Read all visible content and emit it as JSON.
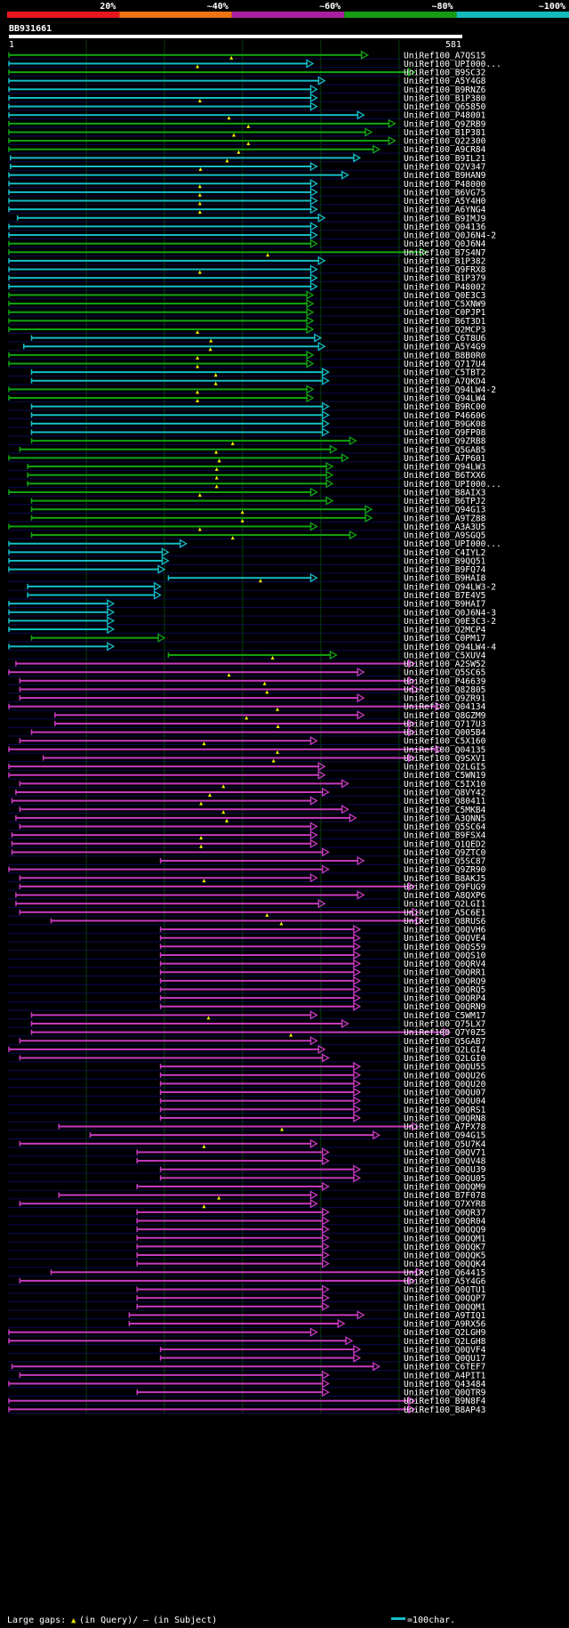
{
  "scale": {
    "ticks": [
      "20%",
      "~40%",
      "~60%",
      "~80%",
      "~100%"
    ],
    "colors": [
      "#e8161e",
      "#ec7412",
      "#a8209f",
      "#169b14",
      "#14b9b9"
    ]
  },
  "query": {
    "id": "BB931661",
    "start": "1",
    "end": "581",
    "length": 581
  },
  "colors": {
    "cyan": "#14bcc6",
    "green": "#11a511",
    "magenta": "#c63ac0",
    "white": "#ffffff",
    "label": "#ffffff",
    "grid": "#0b3a0b",
    "band": "#0a0a55"
  },
  "hits": [
    {
      "id": "UniRef100_A7QS15",
      "s": 1,
      "e": 460,
      "c": "green",
      "gap": true
    },
    {
      "id": "UniRef100_UPI000...",
      "s": 1,
      "e": 390,
      "c": "cyan",
      "gap": true
    },
    {
      "id": "UniRef100_B9SC32",
      "s": 1,
      "e": 520,
      "c": "green",
      "gap": false
    },
    {
      "id": "UniRef100_A5Y4G8",
      "s": 1,
      "e": 405,
      "c": "cyan",
      "gap": false
    },
    {
      "id": "UniRef100_B9RNZ6",
      "s": 1,
      "e": 395,
      "c": "cyan",
      "gap": false
    },
    {
      "id": "UniRef100_B1P380",
      "s": 1,
      "e": 395,
      "c": "cyan",
      "gap": true
    },
    {
      "id": "UniRef100_Q65850",
      "s": 1,
      "e": 395,
      "c": "cyan",
      "gap": false
    },
    {
      "id": "UniRef100_P48001",
      "s": 1,
      "e": 455,
      "c": "cyan",
      "gap": true
    },
    {
      "id": "UniRef100_Q9ZRB9",
      "s": 1,
      "e": 495,
      "c": "green",
      "gap": true
    },
    {
      "id": "UniRef100_B1P381",
      "s": 1,
      "e": 465,
      "c": "green",
      "gap": true
    },
    {
      "id": "UniRef100_Q22300",
      "s": 1,
      "e": 495,
      "c": "green",
      "gap": true
    },
    {
      "id": "UniRef100_A9CR84",
      "s": 1,
      "e": 475,
      "c": "green",
      "gap": true
    },
    {
      "id": "UniRef100_B9IL21",
      "s": 3,
      "e": 450,
      "c": "cyan",
      "gap": true
    },
    {
      "id": "UniRef100_Q2V347",
      "s": 3,
      "e": 395,
      "c": "cyan",
      "gap": true
    },
    {
      "id": "UniRef100_B9HAN9",
      "s": 1,
      "e": 435,
      "c": "cyan",
      "gap": false
    },
    {
      "id": "UniRef100_P48000",
      "s": 1,
      "e": 395,
      "c": "cyan",
      "gap": true
    },
    {
      "id": "UniRef100_B6VG75",
      "s": 1,
      "e": 395,
      "c": "cyan",
      "gap": true
    },
    {
      "id": "UniRef100_A5Y4H0",
      "s": 1,
      "e": 395,
      "c": "cyan",
      "gap": true
    },
    {
      "id": "UniRef100_A6YNG4",
      "s": 1,
      "e": 395,
      "c": "cyan",
      "gap": true
    },
    {
      "id": "UniRef100_B9IMJ9",
      "s": 12,
      "e": 405,
      "c": "cyan",
      "gap": false
    },
    {
      "id": "UniRef100_Q04136",
      "s": 1,
      "e": 395,
      "c": "cyan",
      "gap": false
    },
    {
      "id": "UniRef100_Q0J6N4-2",
      "s": 1,
      "e": 395,
      "c": "cyan",
      "gap": false
    },
    {
      "id": "UniRef100_Q0J6N4",
      "s": 1,
      "e": 395,
      "c": "green",
      "gap": false
    },
    {
      "id": "UniRef100_B7S4N7",
      "s": 1,
      "e": 535,
      "c": "green",
      "gap": true
    },
    {
      "id": "UniRef100_B1P382",
      "s": 1,
      "e": 405,
      "c": "cyan",
      "gap": false
    },
    {
      "id": "UniRef100_Q9FRX8",
      "s": 1,
      "e": 395,
      "c": "cyan",
      "gap": true
    },
    {
      "id": "UniRef100_B1P379",
      "s": 1,
      "e": 395,
      "c": "cyan",
      "gap": false
    },
    {
      "id": "UniRef100_P48002",
      "s": 1,
      "e": 395,
      "c": "cyan",
      "gap": false
    },
    {
      "id": "UniRef100_Q0E3C3",
      "s": 1,
      "e": 390,
      "c": "green",
      "gap": false
    },
    {
      "id": "UniRef100_C5XNW9",
      "s": 1,
      "e": 390,
      "c": "green",
      "gap": false
    },
    {
      "id": "UniRef100_C0PJP1",
      "s": 1,
      "e": 390,
      "c": "green",
      "gap": false
    },
    {
      "id": "UniRef100_B6T3D1",
      "s": 1,
      "e": 390,
      "c": "green",
      "gap": false
    },
    {
      "id": "UniRef100_Q2MCP3",
      "s": 1,
      "e": 390,
      "c": "green",
      "gap": true
    },
    {
      "id": "UniRef100_C6T8U6",
      "s": 30,
      "e": 400,
      "c": "cyan",
      "gap": true
    },
    {
      "id": "UniRef100_A5Y4G9",
      "s": 20,
      "e": 405,
      "c": "cyan",
      "gap": true
    },
    {
      "id": "UniRef100_B8B0R0",
      "s": 1,
      "e": 390,
      "c": "green",
      "gap": true
    },
    {
      "id": "UniRef100_Q717U4",
      "s": 1,
      "e": 390,
      "c": "green",
      "gap": true
    },
    {
      "id": "UniRef100_C5TBT2",
      "s": 30,
      "e": 410,
      "c": "cyan",
      "gap": true
    },
    {
      "id": "UniRef100_A7QKD4",
      "s": 30,
      "e": 410,
      "c": "cyan",
      "gap": true
    },
    {
      "id": "UniRef100_Q94LW4-2",
      "s": 1,
      "e": 390,
      "c": "green",
      "gap": true
    },
    {
      "id": "UniRef100_Q94LW4",
      "s": 1,
      "e": 390,
      "c": "green",
      "gap": true
    },
    {
      "id": "UniRef100_B9RC00",
      "s": 30,
      "e": 410,
      "c": "cyan",
      "gap": false
    },
    {
      "id": "UniRef100_P46606",
      "s": 30,
      "e": 410,
      "c": "cyan",
      "gap": false
    },
    {
      "id": "UniRef100_B9GK08",
      "s": 30,
      "e": 410,
      "c": "cyan",
      "gap": false
    },
    {
      "id": "UniRef100_Q9FP08",
      "s": 30,
      "e": 410,
      "c": "cyan",
      "gap": false
    },
    {
      "id": "UniRef100_Q9ZRB8",
      "s": 30,
      "e": 445,
      "c": "green",
      "gap": true
    },
    {
      "id": "UniRef100_Q5GAB5",
      "s": 15,
      "e": 420,
      "c": "green",
      "gap": true
    },
    {
      "id": "UniRef100_A7P601",
      "s": 1,
      "e": 435,
      "c": "green",
      "gap": true
    },
    {
      "id": "UniRef100_Q94LW3",
      "s": 25,
      "e": 415,
      "c": "green",
      "gap": true
    },
    {
      "id": "UniRef100_B6TXX6",
      "s": 25,
      "e": 415,
      "c": "green",
      "gap": true
    },
    {
      "id": "UniRef100_UPI000...",
      "s": 25,
      "e": 415,
      "c": "green",
      "gap": true
    },
    {
      "id": "UniRef100_B8AIX3",
      "s": 1,
      "e": 395,
      "c": "green",
      "gap": true
    },
    {
      "id": "UniRef100_B6TPJ2",
      "s": 30,
      "e": 415,
      "c": "green",
      "gap": false
    },
    {
      "id": "UniRef100_Q94G13",
      "s": 30,
      "e": 465,
      "c": "green",
      "gap": true
    },
    {
      "id": "UniRef100_A9TZ88",
      "s": 30,
      "e": 465,
      "c": "green",
      "gap": true
    },
    {
      "id": "UniRef100_A3A3U5",
      "s": 1,
      "e": 395,
      "c": "green",
      "gap": true
    },
    {
      "id": "UniRef100_A9SGQ5",
      "s": 30,
      "e": 445,
      "c": "green",
      "gap": true
    },
    {
      "id": "UniRef100_UPI000...",
      "s": 1,
      "e": 228,
      "c": "cyan",
      "gap": false
    },
    {
      "id": "UniRef100_C4IYL2",
      "s": 1,
      "e": 205,
      "c": "cyan",
      "gap": false
    },
    {
      "id": "UniRef100_B9QQ51",
      "s": 1,
      "e": 205,
      "c": "cyan",
      "gap": false
    },
    {
      "id": "UniRef100_B9FQ74",
      "s": 1,
      "e": 200,
      "c": "cyan",
      "gap": false
    },
    {
      "id": "UniRef100_B9HAI8",
      "s": 205,
      "e": 395,
      "c": "cyan",
      "gap": true
    },
    {
      "id": "UniRef100_Q94LW3-2",
      "s": 25,
      "e": 195,
      "c": "cyan",
      "gap": false
    },
    {
      "id": "UniRef100_B7E4V5",
      "s": 25,
      "e": 195,
      "c": "cyan",
      "gap": false
    },
    {
      "id": "UniRef100_B9HAI7",
      "s": 1,
      "e": 135,
      "c": "cyan",
      "gap": false
    },
    {
      "id": "UniRef100_Q0J6N4-3",
      "s": 1,
      "e": 135,
      "c": "cyan",
      "gap": false
    },
    {
      "id": "UniRef100_Q0E3C3-2",
      "s": 1,
      "e": 135,
      "c": "cyan",
      "gap": false
    },
    {
      "id": "UniRef100_Q2MCP4",
      "s": 1,
      "e": 135,
      "c": "cyan",
      "gap": false
    },
    {
      "id": "UniRef100_C0PM17",
      "s": 30,
      "e": 200,
      "c": "green",
      "gap": false
    },
    {
      "id": "UniRef100_Q94LW4-4",
      "s": 1,
      "e": 135,
      "c": "cyan",
      "gap": false
    },
    {
      "id": "UniRef100_C5XUV4",
      "s": 205,
      "e": 420,
      "c": "green",
      "gap": true
    },
    {
      "id": "UniRef100_A2SW52",
      "s": 10,
      "e": 520,
      "c": "magenta",
      "gap": false
    },
    {
      "id": "UniRef100_Q5SC65",
      "s": 1,
      "e": 455,
      "c": "magenta",
      "gap": true
    },
    {
      "id": "UniRef100_P46639",
      "s": 15,
      "e": 520,
      "c": "magenta",
      "gap": true
    },
    {
      "id": "UniRef100_Q82805",
      "s": 15,
      "e": 525,
      "c": "magenta",
      "gap": true
    },
    {
      "id": "UniRef100_Q9ZR91",
      "s": 15,
      "e": 455,
      "c": "magenta",
      "gap": false
    },
    {
      "id": "UniRef100_Q04134",
      "s": 1,
      "e": 555,
      "c": "magenta",
      "gap": true
    },
    {
      "id": "UniRef100_Q8GZM9",
      "s": 60,
      "e": 455,
      "c": "magenta",
      "gap": true
    },
    {
      "id": "UniRef100_Q717U3",
      "s": 60,
      "e": 520,
      "c": "magenta",
      "gap": true
    },
    {
      "id": "UniRef100_Q005B4",
      "s": 30,
      "e": 520,
      "c": "magenta",
      "gap": false
    },
    {
      "id": "UniRef100_C5X160",
      "s": 15,
      "e": 395,
      "c": "magenta",
      "gap": true
    },
    {
      "id": "UniRef100_Q04135",
      "s": 1,
      "e": 555,
      "c": "magenta",
      "gap": true
    },
    {
      "id": "UniRef100_Q9SXV1",
      "s": 45,
      "e": 520,
      "c": "magenta",
      "gap": true
    },
    {
      "id": "UniRef100_Q2LGI5",
      "s": 1,
      "e": 405,
      "c": "magenta",
      "gap": false
    },
    {
      "id": "UniRef100_C5WN19",
      "s": 1,
      "e": 405,
      "c": "magenta",
      "gap": false
    },
    {
      "id": "UniRef100_C5IX10",
      "s": 15,
      "e": 435,
      "c": "magenta",
      "gap": true
    },
    {
      "id": "UniRef100_Q8VY42",
      "s": 10,
      "e": 410,
      "c": "magenta",
      "gap": true
    },
    {
      "id": "UniRef100_Q80411",
      "s": 5,
      "e": 395,
      "c": "magenta",
      "gap": true
    },
    {
      "id": "UniRef100_C5MKB4",
      "s": 15,
      "e": 435,
      "c": "magenta",
      "gap": true
    },
    {
      "id": "UniRef100_A3QNN5",
      "s": 10,
      "e": 445,
      "c": "magenta",
      "gap": true
    },
    {
      "id": "UniRef100_Q5SC64",
      "s": 15,
      "e": 395,
      "c": "magenta",
      "gap": false
    },
    {
      "id": "UniRef100_B9FSX4",
      "s": 5,
      "e": 395,
      "c": "magenta",
      "gap": true
    },
    {
      "id": "UniRef100_Q1QED2",
      "s": 5,
      "e": 395,
      "c": "magenta",
      "gap": true
    },
    {
      "id": "UniRef100_Q9ZTC0",
      "s": 5,
      "e": 410,
      "c": "magenta",
      "gap": false
    },
    {
      "id": "UniRef100_Q5SC87",
      "s": 195,
      "e": 455,
      "c": "magenta",
      "gap": false
    },
    {
      "id": "UniRef100_Q9ZR90",
      "s": 1,
      "e": 410,
      "c": "magenta",
      "gap": false
    },
    {
      "id": "UniRef100_B8AKJ5",
      "s": 15,
      "e": 395,
      "c": "magenta",
      "gap": true
    },
    {
      "id": "UniRef100_Q9FUG9",
      "s": 15,
      "e": 520,
      "c": "magenta",
      "gap": false
    },
    {
      "id": "UniRef100_A8QXP6",
      "s": 10,
      "e": 455,
      "c": "magenta",
      "gap": false
    },
    {
      "id": "UniRef100_Q2LGI1",
      "s": 10,
      "e": 405,
      "c": "magenta",
      "gap": false
    },
    {
      "id": "UniRef100_A5C6E1",
      "s": 15,
      "e": 525,
      "c": "magenta",
      "gap": true
    },
    {
      "id": "UniRef100_Q8RUS6",
      "s": 55,
      "e": 530,
      "c": "magenta",
      "gap": true
    },
    {
      "id": "UniRef100_Q0QVH6",
      "s": 195,
      "e": 450,
      "c": "magenta",
      "gap": false
    },
    {
      "id": "UniRef100_Q0QVE4",
      "s": 195,
      "e": 450,
      "c": "magenta",
      "gap": false
    },
    {
      "id": "UniRef100_Q0QS59",
      "s": 195,
      "e": 450,
      "c": "magenta",
      "gap": false
    },
    {
      "id": "UniRef100_Q0QS10",
      "s": 195,
      "e": 450,
      "c": "magenta",
      "gap": false
    },
    {
      "id": "UniRef100_Q0QRV4",
      "s": 195,
      "e": 450,
      "c": "magenta",
      "gap": false
    },
    {
      "id": "UniRef100_Q0QRR1",
      "s": 195,
      "e": 450,
      "c": "magenta",
      "gap": false
    },
    {
      "id": "UniRef100_Q0QRQ9",
      "s": 195,
      "e": 450,
      "c": "magenta",
      "gap": false
    },
    {
      "id": "UniRef100_Q0QRQ5",
      "s": 195,
      "e": 450,
      "c": "magenta",
      "gap": false
    },
    {
      "id": "UniRef100_Q0QRP4",
      "s": 195,
      "e": 450,
      "c": "magenta",
      "gap": false
    },
    {
      "id": "UniRef100_Q0QRN9",
      "s": 195,
      "e": 450,
      "c": "magenta",
      "gap": false
    },
    {
      "id": "UniRef100_C5WM17",
      "s": 30,
      "e": 395,
      "c": "magenta",
      "gap": true
    },
    {
      "id": "UniRef100_Q75LX7",
      "s": 30,
      "e": 435,
      "c": "magenta",
      "gap": false
    },
    {
      "id": "UniRef100_Q7Y0Z5",
      "s": 30,
      "e": 565,
      "c": "magenta",
      "gap": true
    },
    {
      "id": "UniRef100_Q5GAB7",
      "s": 15,
      "e": 395,
      "c": "magenta",
      "gap": false
    },
    {
      "id": "UniRef100_Q2LGI4",
      "s": 1,
      "e": 405,
      "c": "magenta",
      "gap": false
    },
    {
      "id": "UniRef100_Q2LGI0",
      "s": 15,
      "e": 410,
      "c": "magenta",
      "gap": false
    },
    {
      "id": "UniRef100_Q0QU55",
      "s": 195,
      "e": 450,
      "c": "magenta",
      "gap": false
    },
    {
      "id": "UniRef100_Q0QU26",
      "s": 195,
      "e": 450,
      "c": "magenta",
      "gap": false
    },
    {
      "id": "UniRef100_Q0QU20",
      "s": 195,
      "e": 450,
      "c": "magenta",
      "gap": false
    },
    {
      "id": "UniRef100_Q0QU07",
      "s": 195,
      "e": 450,
      "c": "magenta",
      "gap": false
    },
    {
      "id": "UniRef100_Q0QU04",
      "s": 195,
      "e": 450,
      "c": "magenta",
      "gap": false
    },
    {
      "id": "UniRef100_Q0QRS1",
      "s": 195,
      "e": 450,
      "c": "magenta",
      "gap": false
    },
    {
      "id": "UniRef100_Q0QRN8",
      "s": 195,
      "e": 450,
      "c": "magenta",
      "gap": false
    },
    {
      "id": "UniRef100_A7PX78",
      "s": 65,
      "e": 525,
      "c": "magenta",
      "gap": true
    },
    {
      "id": "UniRef100_Q94G15",
      "s": 105,
      "e": 475,
      "c": "magenta",
      "gap": false
    },
    {
      "id": "UniRef100_Q5U7K4",
      "s": 15,
      "e": 395,
      "c": "magenta",
      "gap": true
    },
    {
      "id": "UniRef100_Q0QV71",
      "s": 165,
      "e": 410,
      "c": "magenta",
      "gap": false
    },
    {
      "id": "UniRef100_Q0QV48",
      "s": 165,
      "e": 410,
      "c": "magenta",
      "gap": false
    },
    {
      "id": "UniRef100_Q0QU39",
      "s": 195,
      "e": 450,
      "c": "magenta",
      "gap": false
    },
    {
      "id": "UniRef100_Q0QU05",
      "s": 195,
      "e": 450,
      "c": "magenta",
      "gap": false
    },
    {
      "id": "UniRef100_Q0QQM9",
      "s": 165,
      "e": 410,
      "c": "magenta",
      "gap": false
    },
    {
      "id": "UniRef100_B7F078",
      "s": 65,
      "e": 395,
      "c": "magenta",
      "gap": true
    },
    {
      "id": "UniRef100_Q7XYR8",
      "s": 15,
      "e": 395,
      "c": "magenta",
      "gap": true
    },
    {
      "id": "UniRef100_Q0QR37",
      "s": 165,
      "e": 410,
      "c": "magenta",
      "gap": false
    },
    {
      "id": "UniRef100_Q0QR04",
      "s": 165,
      "e": 410,
      "c": "magenta",
      "gap": false
    },
    {
      "id": "UniRef100_Q0QQQ9",
      "s": 165,
      "e": 410,
      "c": "magenta",
      "gap": false
    },
    {
      "id": "UniRef100_Q0QQM1",
      "s": 165,
      "e": 410,
      "c": "magenta",
      "gap": false
    },
    {
      "id": "UniRef100_Q0QQK7",
      "s": 165,
      "e": 410,
      "c": "magenta",
      "gap": false
    },
    {
      "id": "UniRef100_Q0QQK5",
      "s": 165,
      "e": 410,
      "c": "magenta",
      "gap": false
    },
    {
      "id": "UniRef100_Q0QQK4",
      "s": 165,
      "e": 410,
      "c": "magenta",
      "gap": false
    },
    {
      "id": "UniRef100_Q64415",
      "s": 55,
      "e": 530,
      "c": "magenta",
      "gap": false
    },
    {
      "id": "UniRef100_A5Y4G6",
      "s": 15,
      "e": 520,
      "c": "magenta",
      "gap": false
    },
    {
      "id": "UniRef100_Q0QTU1",
      "s": 165,
      "e": 410,
      "c": "magenta",
      "gap": false
    },
    {
      "id": "UniRef100_Q0QQP7",
      "s": 165,
      "e": 410,
      "c": "magenta",
      "gap": false
    },
    {
      "id": "UniRef100_Q0QQM1",
      "s": 165,
      "e": 410,
      "c": "magenta",
      "gap": false
    },
    {
      "id": "UniRef100_A9TIQ1",
      "s": 155,
      "e": 455,
      "c": "magenta",
      "gap": false
    },
    {
      "id": "UniRef100_A9RX56",
      "s": 155,
      "e": 430,
      "c": "magenta",
      "gap": false
    },
    {
      "id": "UniRef100_Q2LGH9",
      "s": 1,
      "e": 395,
      "c": "magenta",
      "gap": false
    },
    {
      "id": "UniRef100_Q2LGH8",
      "s": 1,
      "e": 440,
      "c": "magenta",
      "gap": false
    },
    {
      "id": "UniRef100_Q0QVF4",
      "s": 195,
      "e": 450,
      "c": "magenta",
      "gap": false
    },
    {
      "id": "UniRef100_Q0QU17",
      "s": 195,
      "e": 450,
      "c": "magenta",
      "gap": false
    },
    {
      "id": "UniRef100_C6TEF7",
      "s": 5,
      "e": 475,
      "c": "magenta",
      "gap": false
    },
    {
      "id": "UniRef100_A4PIT1",
      "s": 15,
      "e": 410,
      "c": "magenta",
      "gap": false
    },
    {
      "id": "UniRef100_Q43484",
      "s": 1,
      "e": 410,
      "c": "magenta",
      "gap": false
    },
    {
      "id": "UniRef100_Q0QTR9",
      "s": 165,
      "e": 410,
      "c": "magenta",
      "gap": false
    },
    {
      "id": "UniRef100_B9N8F4",
      "s": 1,
      "e": 520,
      "c": "magenta",
      "gap": false
    },
    {
      "id": "UniRef100_B8AP43",
      "s": 1,
      "e": 520,
      "c": "magenta",
      "gap": false
    }
  ],
  "legend": {
    "gaps_label": "Large gaps:",
    "query_marker": "▲",
    "in_query": "(in Query)/",
    "subject_marker": "—",
    "in_subject": "(in Subject)",
    "scale_label": "=100char."
  }
}
